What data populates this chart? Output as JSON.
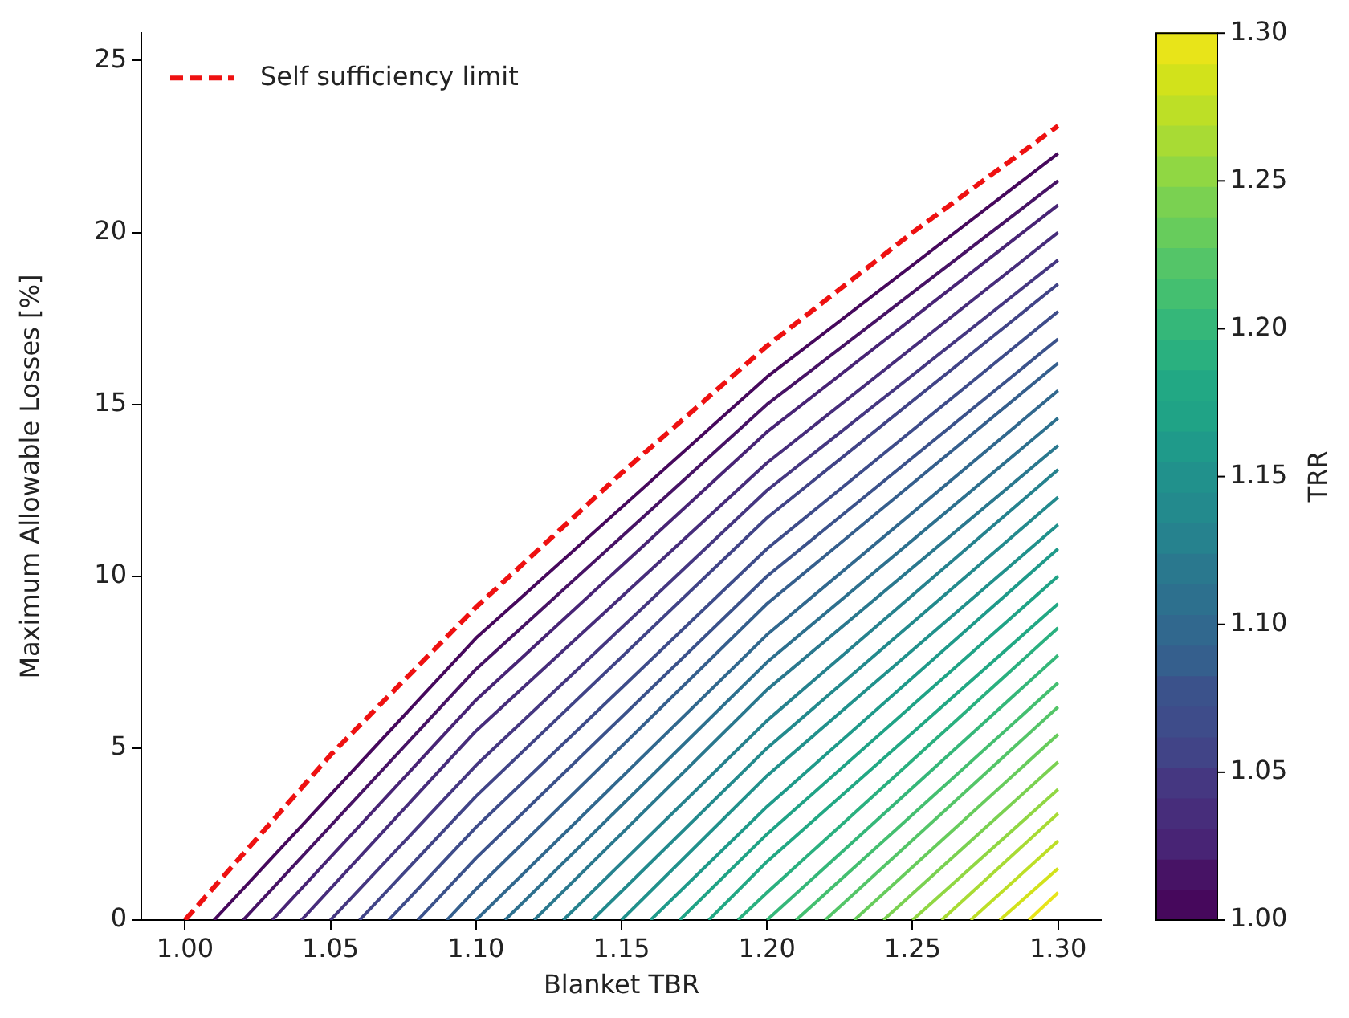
{
  "chart_data": {
    "type": "line",
    "xlabel": "Blanket TBR",
    "ylabel": "Maximum Allowable Losses [%]",
    "clabel": "TRR",
    "xlim": [
      0.985,
      1.315
    ],
    "ylim": [
      0,
      25.8
    ],
    "xticks": [
      {
        "value": 1,
        "label": "1.00"
      },
      {
        "value": 1.05,
        "label": "1.05"
      },
      {
        "value": 1.1,
        "label": "1.10"
      },
      {
        "value": 1.15,
        "label": "1.15"
      },
      {
        "value": 1.2,
        "label": "1.20"
      },
      {
        "value": 1.25,
        "label": "1.25"
      },
      {
        "value": 1.3,
        "label": "1.30"
      }
    ],
    "yticks": [
      0,
      5,
      10,
      15,
      20,
      25
    ],
    "clim": [
      1,
      1.3
    ],
    "cticks": [
      {
        "value": 1,
        "label": "1.00"
      },
      {
        "value": 1.05,
        "label": "1.05"
      },
      {
        "value": 1.1,
        "label": "1.10"
      },
      {
        "value": 1.15,
        "label": "1.15"
      },
      {
        "value": 1.2,
        "label": "1.20"
      },
      {
        "value": 1.25,
        "label": "1.25"
      },
      {
        "value": 1.3,
        "label": "1.30"
      }
    ],
    "grid": false,
    "legend": "top left",
    "series": [
      {
        "color": "#46085c",
        "x": [
          1.01,
          1.1,
          1.2,
          1.3
        ],
        "values": [
          0,
          8.2,
          15.8,
          22.3
        ]
      },
      {
        "color": "#471365",
        "x": [
          1.02,
          1.1,
          1.2,
          1.3
        ],
        "values": [
          0,
          7.3,
          15.0,
          21.5
        ]
      },
      {
        "color": "#482475",
        "x": [
          1.03,
          1.1,
          1.2,
          1.3
        ],
        "values": [
          0,
          6.4,
          14.2,
          20.8
        ]
      },
      {
        "color": "#472d7b",
        "x": [
          1.04,
          1.1,
          1.2,
          1.3
        ],
        "values": [
          0,
          5.5,
          13.3,
          20.0
        ]
      },
      {
        "color": "#453781",
        "x": [
          1.05,
          1.1,
          1.2,
          1.3
        ],
        "values": [
          0,
          4.5,
          12.5,
          19.2
        ]
      },
      {
        "color": "#414487",
        "x": [
          1.06,
          1.1,
          1.2,
          1.3
        ],
        "values": [
          0,
          3.6,
          11.7,
          18.5
        ]
      },
      {
        "color": "#3e4c8a",
        "x": [
          1.07,
          1.1,
          1.2,
          1.3
        ],
        "values": [
          0,
          2.7,
          10.8,
          17.7
        ]
      },
      {
        "color": "#3b528b",
        "x": [
          1.08,
          1.1,
          1.2,
          1.3
        ],
        "values": [
          0,
          1.8,
          10.0,
          16.9
        ]
      },
      {
        "color": "#355f8d",
        "x": [
          1.09,
          1.1,
          1.2,
          1.3
        ],
        "values": [
          0,
          0.9,
          9.2,
          16.2
        ]
      },
      {
        "color": "#31688e",
        "x": [
          1.1,
          1.2,
          1.3
        ],
        "values": [
          0,
          8.3,
          15.4
        ]
      },
      {
        "color": "#2d708e",
        "x": [
          1.11,
          1.2,
          1.3
        ],
        "values": [
          0,
          7.5,
          14.6
        ]
      },
      {
        "color": "#2a788e",
        "x": [
          1.12,
          1.2,
          1.3
        ],
        "values": [
          0,
          6.7,
          13.8
        ]
      },
      {
        "color": "#26828e",
        "x": [
          1.13,
          1.2,
          1.3
        ],
        "values": [
          0,
          5.8,
          13.1
        ]
      },
      {
        "color": "#238a8d",
        "x": [
          1.14,
          1.2,
          1.3
        ],
        "values": [
          0,
          5.0,
          12.3
        ]
      },
      {
        "color": "#21918c",
        "x": [
          1.15,
          1.2,
          1.3
        ],
        "values": [
          0,
          4.2,
          11.5
        ]
      },
      {
        "color": "#1f9a8a",
        "x": [
          1.16,
          1.2,
          1.3
        ],
        "values": [
          0,
          3.3,
          10.8
        ]
      },
      {
        "color": "#20a386",
        "x": [
          1.17,
          1.2,
          1.3
        ],
        "values": [
          0,
          2.5,
          10.0
        ]
      },
      {
        "color": "#22a884",
        "x": [
          1.18,
          1.2,
          1.3
        ],
        "values": [
          0,
          1.7,
          9.2
        ]
      },
      {
        "color": "#2ab07f",
        "x": [
          1.19,
          1.2,
          1.3
        ],
        "values": [
          0,
          0.8,
          8.5
        ]
      },
      {
        "color": "#35b779",
        "x": [
          1.2,
          1.3
        ],
        "values": [
          0,
          7.7
        ]
      },
      {
        "color": "#44bf70",
        "x": [
          1.21,
          1.3
        ],
        "values": [
          0,
          6.9
        ]
      },
      {
        "color": "#54c568",
        "x": [
          1.22,
          1.3
        ],
        "values": [
          0,
          6.2
        ]
      },
      {
        "color": "#67cc5c",
        "x": [
          1.23,
          1.3
        ],
        "values": [
          0,
          5.4
        ]
      },
      {
        "color": "#7ad151",
        "x": [
          1.24,
          1.3
        ],
        "values": [
          0,
          4.6
        ]
      },
      {
        "color": "#90d743",
        "x": [
          1.25,
          1.3
        ],
        "values": [
          0,
          3.8
        ]
      },
      {
        "color": "#a8db34",
        "x": [
          1.26,
          1.3
        ],
        "values": [
          0,
          3.1
        ]
      },
      {
        "color": "#bddf26",
        "x": [
          1.27,
          1.3
        ],
        "values": [
          0,
          2.3
        ]
      },
      {
        "color": "#d2e21b",
        "x": [
          1.28,
          1.3
        ],
        "values": [
          0,
          1.5
        ]
      },
      {
        "color": "#e8e419",
        "x": [
          1.29,
          1.3
        ],
        "values": [
          0,
          0.8
        ]
      },
      {
        "name": "Self sufficiency limit",
        "color": "#ee1111",
        "line_style": "dashed",
        "x": [
          1,
          1.05,
          1.1,
          1.15,
          1.2,
          1.25,
          1.3
        ],
        "values": [
          0,
          4.8,
          9.1,
          13.0,
          16.7,
          20.0,
          23.1
        ]
      }
    ]
  }
}
